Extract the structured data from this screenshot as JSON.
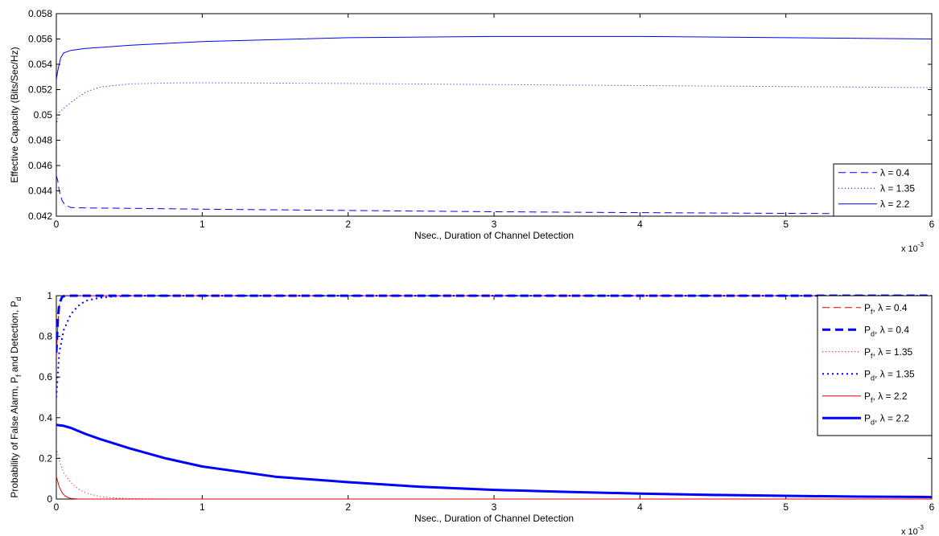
{
  "chart_data": [
    {
      "type": "line",
      "xlabel": "Nsec., Duration of Channel Detection",
      "ylabel": "Effective Capacity (Bits/Sec/Hz)",
      "x_exponent_label": "x 10",
      "x_exponent": "-3",
      "xlim": [
        0,
        6
      ],
      "ylim": [
        0.042,
        0.058
      ],
      "xticks": [
        "0",
        "1",
        "2",
        "3",
        "4",
        "5",
        "6"
      ],
      "yticks": [
        "0.042",
        "0.044",
        "0.046",
        "0.048",
        "0.05",
        "0.052",
        "0.054",
        "0.056",
        "0.058"
      ],
      "legend_position": "bottom-right",
      "series": [
        {
          "name": "λ = 0.4",
          "color": "#0000ff",
          "style": "dashed",
          "x": [
            0,
            0.01,
            0.02,
            0.04,
            0.06,
            0.1,
            0.2,
            0.5,
            1,
            2,
            3,
            4,
            5,
            5.5,
            6
          ],
          "y": [
            0.0452,
            0.0448,
            0.044,
            0.0432,
            0.0429,
            0.04268,
            0.04265,
            0.04262,
            0.04255,
            0.04245,
            0.04235,
            0.04228,
            0.04222,
            0.0422,
            0.0422
          ]
        },
        {
          "name": "λ = 1.35",
          "color": "#0000ff",
          "style": "dotted",
          "x": [
            0,
            0.02,
            0.05,
            0.1,
            0.2,
            0.3,
            0.5,
            0.8,
            1,
            2,
            3,
            4,
            5,
            6
          ],
          "y": [
            0.0492,
            0.0502,
            0.0505,
            0.051,
            0.0518,
            0.0522,
            0.05245,
            0.05253,
            0.05254,
            0.05248,
            0.0524,
            0.05232,
            0.05224,
            0.05216
          ]
        },
        {
          "name": "λ = 2.2",
          "color": "#0000ff",
          "style": "solid",
          "x": [
            0,
            0.01,
            0.03,
            0.05,
            0.1,
            0.2,
            0.5,
            1,
            2,
            3,
            4,
            5,
            6
          ],
          "y": [
            0.0528,
            0.0535,
            0.0545,
            0.0549,
            0.0551,
            0.05525,
            0.0555,
            0.0558,
            0.0561,
            0.0562,
            0.0562,
            0.0561,
            0.056
          ]
        }
      ]
    },
    {
      "type": "line",
      "xlabel": "Nsec., Duration of Channel Detection",
      "ylabel": "Probability of False Alarm, P",
      "ylabel_sub_f": "f",
      "ylabel_mid": " and Detection, P",
      "ylabel_sub_d": "d",
      "x_exponent_label": "x 10",
      "x_exponent": "-3",
      "xlim": [
        0,
        6
      ],
      "ylim": [
        0,
        1
      ],
      "xticks": [
        "0",
        "1",
        "2",
        "3",
        "4",
        "5",
        "6"
      ],
      "yticks": [
        "0",
        "0.2",
        "0.4",
        "0.6",
        "0.8",
        "1"
      ],
      "legend_position": "top-right",
      "series": [
        {
          "name": "P_f, λ = 0.4",
          "label_main": "P",
          "label_sub": "f",
          "label_rest": ", λ = 0.4",
          "color": "#e00000",
          "style": "dashed",
          "width": 1,
          "x": [
            0,
            0.01,
            0.02,
            0.04,
            0.06,
            0.1,
            1,
            6
          ],
          "y": [
            0.7,
            0.85,
            0.95,
            0.99,
            1.0,
            1.0,
            1.0,
            1.0
          ]
        },
        {
          "name": "P_d, λ = 0.4",
          "label_main": "P",
          "label_sub": "d",
          "label_rest": ", λ = 0.4",
          "color": "#0000ff",
          "style": "dashed",
          "width": 3,
          "x": [
            0,
            0.01,
            0.02,
            0.04,
            0.06,
            0.1,
            1,
            6
          ],
          "y": [
            0.72,
            0.88,
            0.96,
            0.995,
            1.0,
            1.0,
            1.0,
            1.0
          ]
        },
        {
          "name": "P_f, λ = 1.35",
          "label_main": "P",
          "label_sub": "f",
          "label_rest": ", λ = 1.35",
          "color": "#e00000",
          "style": "dotted",
          "width": 1,
          "x": [
            0,
            0.02,
            0.05,
            0.1,
            0.15,
            0.2,
            0.3,
            0.4,
            0.5,
            0.6,
            0.8,
            1,
            6
          ],
          "y": [
            0.25,
            0.19,
            0.13,
            0.08,
            0.05,
            0.03,
            0.012,
            0.005,
            0.002,
            0.001,
            0.0,
            0.0,
            0.0
          ]
        },
        {
          "name": "P_d, λ = 1.35",
          "label_main": "P",
          "label_sub": "d",
          "label_rest": ", λ = 1.35",
          "color": "#0000ff",
          "style": "dotted",
          "width": 2,
          "x": [
            0,
            0.02,
            0.05,
            0.1,
            0.15,
            0.2,
            0.3,
            0.4,
            0.5,
            1,
            6
          ],
          "y": [
            0.5,
            0.72,
            0.83,
            0.91,
            0.95,
            0.975,
            0.99,
            0.997,
            1.0,
            1.0,
            1.0
          ]
        },
        {
          "name": "P_f, λ = 2.2",
          "label_main": "P",
          "label_sub": "f",
          "label_rest": ", λ = 2.2",
          "color": "#e00000",
          "style": "solid",
          "width": 1,
          "x": [
            0,
            0.02,
            0.04,
            0.06,
            0.08,
            0.1,
            0.15,
            1,
            6
          ],
          "y": [
            0.11,
            0.06,
            0.03,
            0.015,
            0.007,
            0.003,
            0.0,
            0.0,
            0.0
          ]
        },
        {
          "name": "P_d, λ = 2.2",
          "label_main": "P",
          "label_sub": "d",
          "label_rest": ", λ = 2.2",
          "color": "#0000ff",
          "style": "solid",
          "width": 3,
          "x": [
            0,
            0.05,
            0.1,
            0.2,
            0.3,
            0.5,
            0.75,
            1,
            1.5,
            2,
            2.5,
            3,
            3.5,
            4,
            4.5,
            5,
            5.5,
            6
          ],
          "y": [
            0.365,
            0.36,
            0.35,
            0.32,
            0.295,
            0.25,
            0.2,
            0.16,
            0.11,
            0.083,
            0.06,
            0.045,
            0.035,
            0.027,
            0.02,
            0.016,
            0.012,
            0.01
          ]
        }
      ]
    }
  ]
}
